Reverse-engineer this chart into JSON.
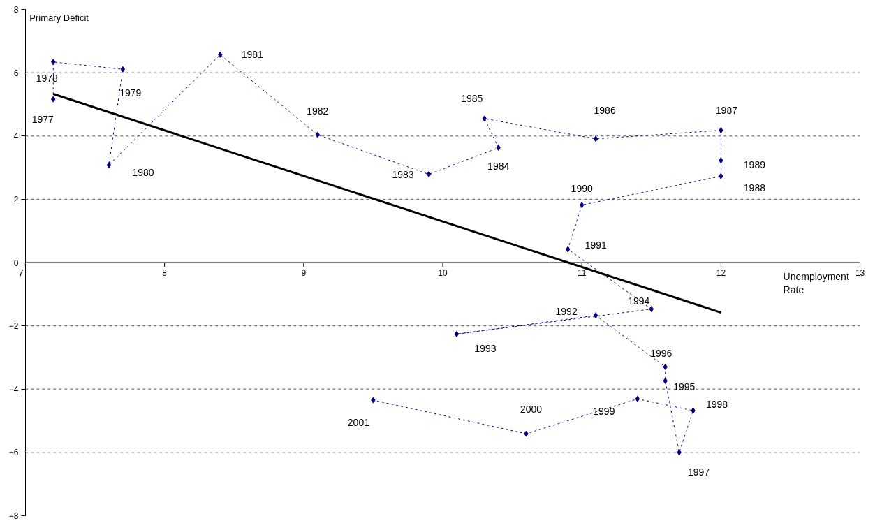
{
  "chart_data": {
    "type": "line",
    "xlabel": "Unemployment Rate",
    "ylabel": "Primary Deficit",
    "xlim": [
      7,
      13
    ],
    "xticks": [
      7,
      8,
      9,
      10,
      11,
      12,
      13
    ],
    "ylim": [
      -8,
      8
    ],
    "yticks": [
      -8,
      -6,
      -4,
      -2,
      0,
      2,
      4,
      6,
      8
    ],
    "grid": "y",
    "series": [
      {
        "color": "#000080",
        "marker": "diamond",
        "line_style": "dashed",
        "x": [
          7.2,
          7.2,
          7.7,
          7.6,
          8.4,
          9.1,
          9.9,
          10.4,
          10.3,
          11.1,
          12.0,
          12.0,
          12.0,
          11.0,
          10.9,
          11.5,
          10.1,
          11.1,
          11.6,
          11.6,
          11.7,
          11.8,
          11.4,
          10.6,
          9.5
        ],
        "values": [
          5.16,
          6.34,
          6.11,
          3.08,
          6.57,
          4.04,
          2.79,
          3.63,
          4.55,
          3.91,
          4.18,
          3.23,
          2.73,
          1.82,
          0.42,
          -1.47,
          -2.26,
          -1.67,
          -3.3,
          -3.74,
          -6.0,
          -4.68,
          -4.31,
          -5.41,
          -4.35
        ]
      },
      {
        "color": "#000000",
        "marker": "none",
        "line_style": "solid",
        "x": [
          7.2,
          12.0
        ],
        "values": [
          5.33,
          -1.58
        ]
      }
    ],
    "annotations": [
      {
        "text": "1977",
        "x": 7.2,
        "y": 5.16
      },
      {
        "text": "1978",
        "x": 7.2,
        "y": 6.34
      },
      {
        "text": "1979",
        "x": 7.7,
        "y": 6.11
      },
      {
        "text": "1980",
        "x": 7.6,
        "y": 3.08
      },
      {
        "text": "1981",
        "x": 8.4,
        "y": 6.57
      },
      {
        "text": "1982",
        "x": 9.1,
        "y": 4.04
      },
      {
        "text": "1983",
        "x": 9.9,
        "y": 2.79
      },
      {
        "text": "1984",
        "x": 10.4,
        "y": 3.63
      },
      {
        "text": "1985",
        "x": 10.3,
        "y": 4.55
      },
      {
        "text": "1986",
        "x": 11.1,
        "y": 3.91
      },
      {
        "text": "1987",
        "x": 12.0,
        "y": 4.18
      },
      {
        "text": "1989",
        "x": 12.0,
        "y": 3.23
      },
      {
        "text": "1988",
        "x": 12.0,
        "y": 2.73
      },
      {
        "text": "1990",
        "x": 11.0,
        "y": 1.82
      },
      {
        "text": "1991",
        "x": 10.9,
        "y": 0.42
      },
      {
        "text": "1994",
        "x": 11.5,
        "y": -1.47
      },
      {
        "text": "1993",
        "x": 10.1,
        "y": -2.26
      },
      {
        "text": "1992",
        "x": 11.1,
        "y": -1.67
      },
      {
        "text": "1996",
        "x": 11.6,
        "y": -3.3
      },
      {
        "text": "1995",
        "x": 11.6,
        "y": -3.74
      },
      {
        "text": "1997",
        "x": 11.7,
        "y": -6.0
      },
      {
        "text": "1998",
        "x": 11.8,
        "y": -4.68
      },
      {
        "text": "1999",
        "x": 11.4,
        "y": -4.31
      },
      {
        "text": "2000",
        "x": 10.6,
        "y": -5.41
      },
      {
        "text": "2001",
        "x": 9.5,
        "y": -4.35
      }
    ]
  }
}
